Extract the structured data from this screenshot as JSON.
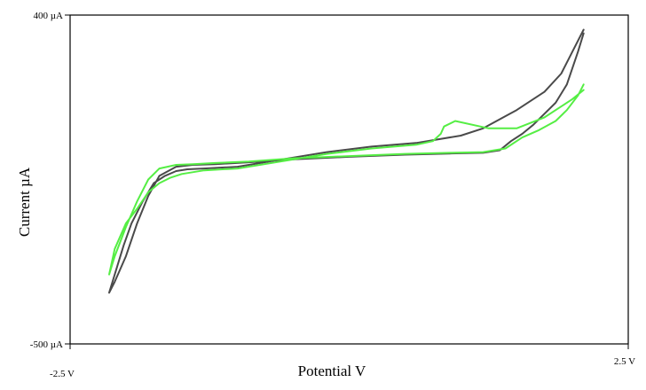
{
  "chart_data": {
    "type": "line",
    "title": "",
    "xlabel": "Potential V",
    "ylabel": "Current µA",
    "xlim": [
      -2.5,
      2.5
    ],
    "ylim": [
      -500,
      400
    ],
    "x_tick_labels": [
      "-2.5 V",
      "2.5 V"
    ],
    "y_tick_labels": [
      "400 µA",
      "-500 µA"
    ],
    "grid": false,
    "legend": "none",
    "series": [
      {
        "color": "#4a4a4a",
        "x": [
          2.1,
          2.0,
          1.9,
          1.75,
          1.5,
          1.2,
          1.0,
          0.6,
          0.2,
          -0.2,
          -0.6,
          -1.0,
          -1.3,
          -1.45,
          -1.55,
          -1.65,
          -1.75,
          -1.85,
          -1.95,
          -2.02,
          -2.1,
          -2.15,
          -2.1,
          -2.0,
          -1.9,
          -1.8,
          -1.7,
          -1.55,
          -1.4,
          -1.2,
          -0.9,
          -0.5,
          0.0,
          0.5,
          0.9,
          1.2,
          1.35,
          1.45,
          1.55,
          1.65,
          1.75,
          1.85,
          1.95,
          2.05,
          2.1
        ],
        "y": [
          360,
          300,
          240,
          190,
          140,
          90,
          70,
          50,
          40,
          25,
          5,
          -15,
          -20,
          -22,
          -27,
          -40,
          -60,
          -110,
          -170,
          -230,
          -310,
          -360,
          -330,
          -260,
          -170,
          -95,
          -40,
          -15,
          -10,
          -8,
          -3,
          5,
          12,
          18,
          21,
          23,
          30,
          55,
          75,
          100,
          130,
          160,
          210,
          300,
          350
        ]
      },
      {
        "color": "#55ee44",
        "x": [
          2.1,
          2.0,
          1.9,
          1.75,
          1.5,
          1.25,
          0.95,
          0.85,
          0.82,
          0.75,
          0.6,
          0.2,
          -0.2,
          -0.6,
          -1.0,
          -1.3,
          -1.5,
          -1.6,
          -1.7,
          -1.8,
          -1.9,
          -2.0,
          -2.1,
          -2.15,
          -2.1,
          -2.0,
          -1.9,
          -1.8,
          -1.7,
          -1.55,
          -1.4,
          -1.2,
          -0.9,
          -0.5,
          0.0,
          0.5,
          0.9,
          1.2,
          1.4,
          1.55,
          1.7,
          1.85,
          1.95,
          2.05,
          2.1
        ],
        "y": [
          195,
          170,
          150,
          120,
          90,
          90,
          110,
          95,
          75,
          55,
          45,
          35,
          20,
          0,
          -20,
          -25,
          -35,
          -45,
          -60,
          -85,
          -130,
          -170,
          -240,
          -310,
          -260,
          -180,
          -110,
          -50,
          -20,
          -10,
          -8,
          -5,
          -1,
          8,
          14,
          20,
          23,
          25,
          35,
          65,
          85,
          110,
          140,
          180,
          210
        ]
      }
    ]
  }
}
